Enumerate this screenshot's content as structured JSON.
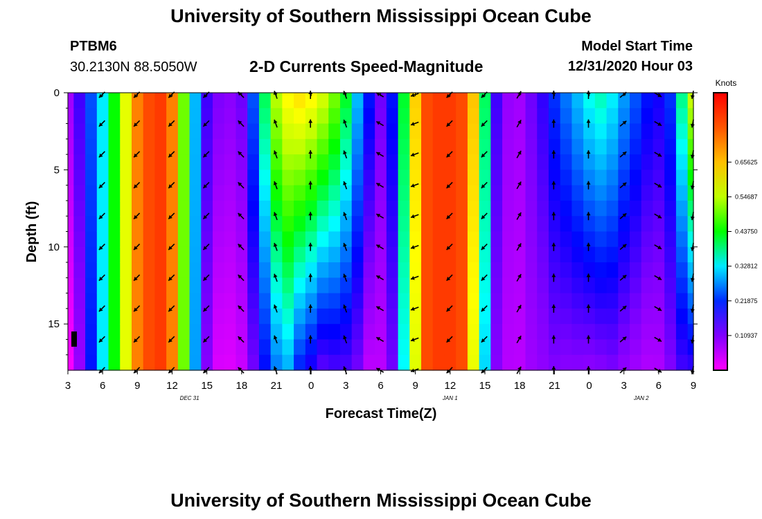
{
  "header": {
    "title": "University of Southern Mississippi Ocean Cube",
    "station_id": "PTBM6",
    "station_coords": "30.2130N 88.5050W",
    "plot_title": "2-D Currents Speed-Magnitude",
    "model_start_label": "Model Start Time",
    "model_start_value": "12/31/2020 Hour 03"
  },
  "footer": {
    "title": "University of Southern Mississippi Ocean Cube"
  },
  "chart_data": {
    "type": "heatmap",
    "title": "2-D Currents Speed-Magnitude",
    "xlabel": "Forecast Time(Z)",
    "ylabel": "Depth (ft)",
    "x_ticks": [
      "3",
      "6",
      "9",
      "12",
      "15",
      "18",
      "21",
      "0",
      "3",
      "6",
      "9",
      "12",
      "15",
      "18",
      "21",
      "0",
      "3",
      "6",
      "9"
    ],
    "x_range_hours": [
      0,
      54
    ],
    "date_labels": [
      {
        "label": "DEC 31",
        "at_hour": 10.5
      },
      {
        "label": "JAN 1",
        "at_hour": 33
      },
      {
        "label": "JAN 2",
        "at_hour": 49.5
      }
    ],
    "y_ticks": [
      "0",
      "5",
      "10",
      "15"
    ],
    "y_range_ft": [
      0,
      18
    ],
    "colorbar": {
      "label": "Knots",
      "range": [
        0,
        0.875
      ],
      "tick_labels": [
        "0.65625",
        "0.54687",
        "0.43750",
        "0.32812",
        "0.21875",
        "0.10937"
      ],
      "tick_values": [
        0.65625,
        0.546875,
        0.4375,
        0.328125,
        0.21875,
        0.109375
      ]
    },
    "speed_profile": {
      "description": "approximate surface speed (knots) per forecast hour 0..54",
      "values": [
        0.08,
        0.15,
        0.24,
        0.33,
        0.44,
        0.58,
        0.72,
        0.78,
        0.8,
        0.72,
        0.5,
        0.3,
        0.15,
        0.11,
        0.1,
        0.12,
        0.24,
        0.4,
        0.54,
        0.6,
        0.62,
        0.6,
        0.56,
        0.5,
        0.42,
        0.3,
        0.2,
        0.12,
        0.2,
        0.42,
        0.64,
        0.78,
        0.8,
        0.8,
        0.78,
        0.65,
        0.4,
        0.15,
        0.09,
        0.08,
        0.12,
        0.16,
        0.22,
        0.26,
        0.3,
        0.34,
        0.36,
        0.33,
        0.28,
        0.24,
        0.2,
        0.18,
        0.22,
        0.38,
        0.55
      ],
      "depth_factor_at_bottom": [
        0.05,
        0.6,
        0.85,
        1.0,
        1.0,
        1.0,
        1.0,
        1.0,
        1.0,
        1.0,
        1.0,
        0.95,
        0.7,
        0.3,
        0.3,
        0.4,
        0.5,
        0.5,
        0.5,
        0.5,
        0.35,
        0.3,
        0.25,
        0.3,
        0.35,
        0.4,
        0.3,
        0.5,
        0.6,
        0.8,
        0.9,
        1.0,
        1.0,
        1.0,
        1.0,
        0.9,
        0.8,
        0.7,
        0.7,
        0.75,
        0.7,
        0.6,
        0.5,
        0.4,
        0.35,
        0.3,
        0.3,
        0.35,
        0.35,
        0.35,
        0.35,
        0.4,
        0.5,
        0.4,
        0.3
      ]
    },
    "direction_profile_deg": {
      "description": "approximate current direction (degrees, 0=north, clockwise) per forecast hour 0..54 at mid depth",
      "values": [
        225,
        225,
        225,
        225,
        225,
        225,
        225,
        225,
        225,
        225,
        225,
        225,
        225,
        225,
        315,
        315,
        315,
        330,
        340,
        350,
        0,
        0,
        355,
        350,
        340,
        330,
        310,
        300,
        290,
        270,
        250,
        235,
        225,
        225,
        225,
        225,
        225,
        60,
        45,
        30,
        15,
        0,
        0,
        0,
        0,
        0,
        10,
        30,
        50,
        80,
        100,
        120,
        140,
        170,
        190
      ]
    }
  }
}
